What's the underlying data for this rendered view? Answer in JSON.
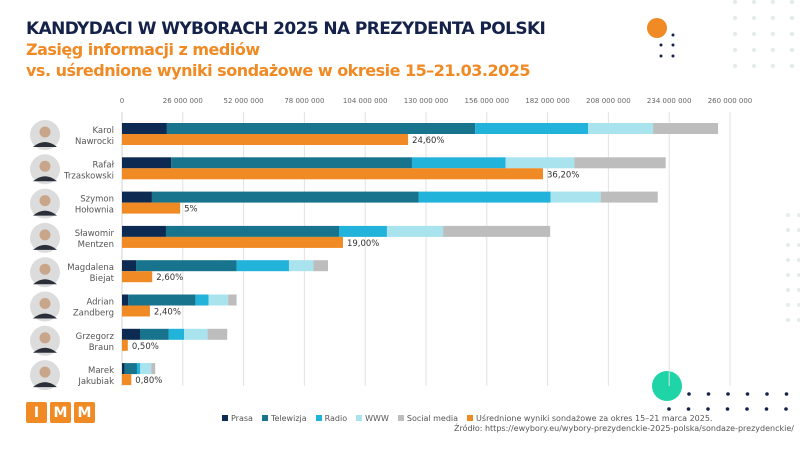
{
  "header": {
    "title": "KANDYDACI W WYBORACH 2025 NA PREZYDENTA POLSKI",
    "subtitle_line1": "Zasięg informacji z mediów",
    "subtitle_line2": "vs. uśrednione wyniki sondażowe w okresie 15–21.03.2025"
  },
  "logo": {
    "letters": [
      "I",
      "M",
      "M"
    ]
  },
  "source": "Źródło: https://ewybory.eu/wybory-prezydenckie-2025-polska/sondaze-prezydenckie/",
  "chart_data": {
    "type": "bar",
    "orientation": "horizontal",
    "stacked": true,
    "categories": [
      "Karol Nawrocki",
      "Rafał Trzaskowski",
      "Szymon Hołownia",
      "Sławomir Mentzen",
      "Magdalena Biejat",
      "Adrian Zandberg",
      "Grzegorz Braun",
      "Marek Jakubiak"
    ],
    "category_lines": [
      [
        "Karol",
        "Nawrocki"
      ],
      [
        "Rafał",
        "Trzaskowski"
      ],
      [
        "Szymon",
        "Hołownia"
      ],
      [
        "Sławomir",
        "Mentzen"
      ],
      [
        "Magdalena",
        "Biejat"
      ],
      [
        "Adrian",
        "Zandberg"
      ],
      [
        "Grzegorz",
        "Braun"
      ],
      [
        "Marek",
        "Jakubiak"
      ]
    ],
    "xlim": [
      0,
      260000000
    ],
    "xticks": [
      0,
      26000000,
      52000000,
      78000000,
      104000000,
      130000000,
      156000000,
      182000000,
      208000000,
      234000000,
      260000000
    ],
    "xtick_labels": [
      "0",
      "26 000 000",
      "52 000 000",
      "78 000 000",
      "104 000 000",
      "130 000 000",
      "156 000 000",
      "182 000 000",
      "208 000 000",
      "234 000 000",
      "260 000 000"
    ],
    "grid": true,
    "legend_position": "bottom",
    "series": [
      {
        "name": "Prasa",
        "color": "#0d2a52",
        "values": [
          19200000,
          21000000,
          12800000,
          18800000,
          6000000,
          2700000,
          7700000,
          1100000
        ]
      },
      {
        "name": "Telewizja",
        "color": "#17748c",
        "values": [
          131800000,
          103000000,
          114000000,
          74000000,
          43000000,
          28700000,
          12200000,
          5300000
        ]
      },
      {
        "name": "Radio",
        "color": "#22b3da",
        "values": [
          48300000,
          40000000,
          56500000,
          20500000,
          22400000,
          5600000,
          6700000,
          1400000
        ]
      },
      {
        "name": "WWW",
        "color": "#a9e3ee",
        "values": [
          27800000,
          29500000,
          21400000,
          24000000,
          10500000,
          8400000,
          10000000,
          4700000
        ]
      },
      {
        "name": "Social media",
        "color": "#bdbdbd",
        "values": [
          27800000,
          39000000,
          24400000,
          45800000,
          6200000,
          3600000,
          8400000,
          1700000
        ]
      }
    ],
    "poll_series": {
      "name": "Uśrednione wyniki sondażowe za okres 15–21 marca 2025.",
      "color": "#f08a24",
      "unit": "%",
      "values": [
        24.6,
        36.2,
        5,
        19.0,
        2.6,
        2.4,
        0.5,
        0.8
      ],
      "labels": [
        "24,60%",
        "36,20%",
        "5%",
        "19,00%",
        "2,60%",
        "2,40%",
        "0,50%",
        "0,80%"
      ]
    }
  }
}
